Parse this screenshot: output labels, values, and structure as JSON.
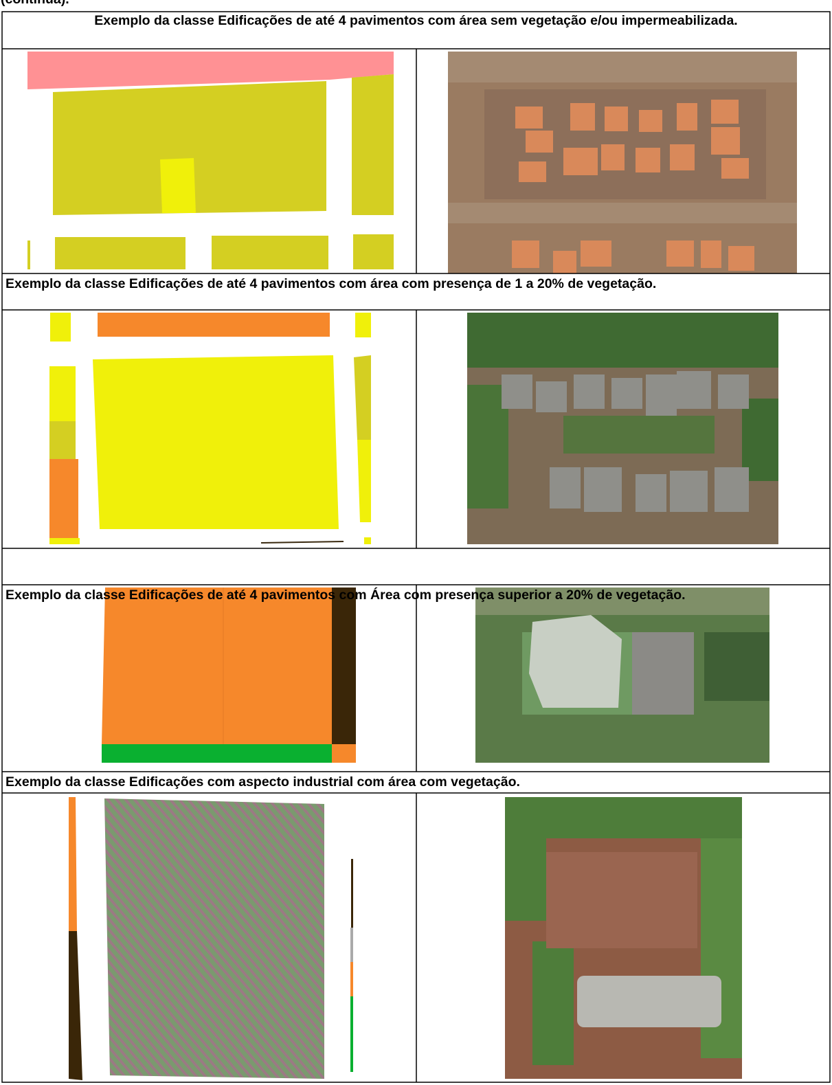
{
  "continuation": "(continua).",
  "table": {
    "rows": [
      {
        "caption": "Exemplo da classe Edificações de até 4 pavimentos com área sem vegetação e/ou impermeabilizada."
      },
      {
        "caption": "Exemplo da classe Edificações de até 4 pavimentos com área com presença de 1 a 20% de vegetação."
      },
      {
        "caption": "Exemplo da classe Edificações de até 4 pavimentos com Área com presença superior a 20% de vegetação."
      },
      {
        "caption": "Exemplo da classe Edificações com aspecto industrial com área com vegetação."
      }
    ]
  }
}
